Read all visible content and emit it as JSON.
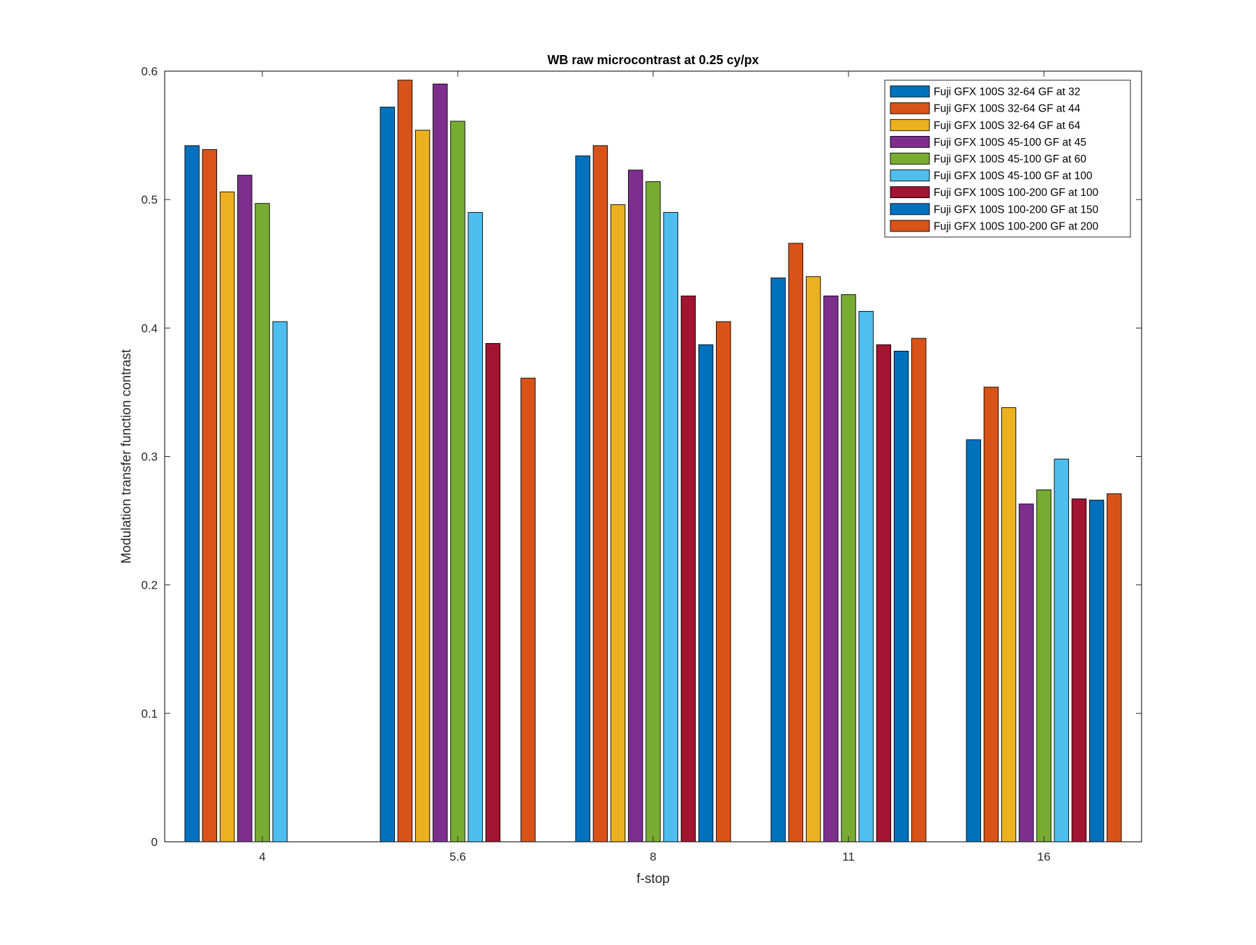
{
  "chart_data": {
    "type": "bar",
    "title": "WB raw  microcontrast at 0.25 cy/px",
    "xlabel": "f-stop",
    "ylabel": "Modulation transfer function contrast",
    "categories": [
      "4",
      "5.6",
      "8",
      "11",
      "16"
    ],
    "ylim": [
      0,
      0.6
    ],
    "yticks": [
      "0",
      "0.1",
      "0.2",
      "0.3",
      "0.4",
      "0.5",
      "0.6"
    ],
    "grid": false,
    "legend_position": "top-right",
    "series": [
      {
        "name": "Fuji GFX 100S 32-64 GF at 32",
        "color": "#0072BD",
        "values": [
          0.542,
          0.572,
          0.534,
          0.439,
          0.313
        ]
      },
      {
        "name": "Fuji GFX 100S 32-64 GF at 44",
        "color": "#D95319",
        "values": [
          0.539,
          0.593,
          0.542,
          0.466,
          0.354
        ]
      },
      {
        "name": "Fuji GFX 100S 32-64 GF at 64",
        "color": "#EDB120",
        "values": [
          0.506,
          0.554,
          0.496,
          0.44,
          0.338
        ]
      },
      {
        "name": "Fuji GFX 100S 45-100 GF at 45",
        "color": "#7E2F8E",
        "values": [
          0.519,
          0.59,
          0.523,
          0.425,
          0.263
        ]
      },
      {
        "name": "Fuji GFX 100S 45-100 GF at 60",
        "color": "#77AC30",
        "values": [
          0.497,
          0.561,
          0.514,
          0.426,
          0.274
        ]
      },
      {
        "name": "Fuji GFX 100S 45-100 GF at 100",
        "color": "#4DBEEE",
        "values": [
          0.405,
          0.49,
          0.49,
          0.413,
          0.298
        ]
      },
      {
        "name": "Fuji GFX 100S 100-200 GF at 100",
        "color": "#A2142F",
        "values": [
          null,
          0.388,
          0.425,
          0.387,
          0.267
        ]
      },
      {
        "name": "Fuji GFX 100S 100-200 GF at 150",
        "color": "#0072BD",
        "values": [
          null,
          null,
          0.387,
          0.382,
          0.266
        ]
      },
      {
        "name": "Fuji GFX 100S 100-200 GF at 200",
        "color": "#D95319",
        "values": [
          null,
          0.361,
          0.405,
          0.392,
          0.271
        ]
      }
    ]
  }
}
